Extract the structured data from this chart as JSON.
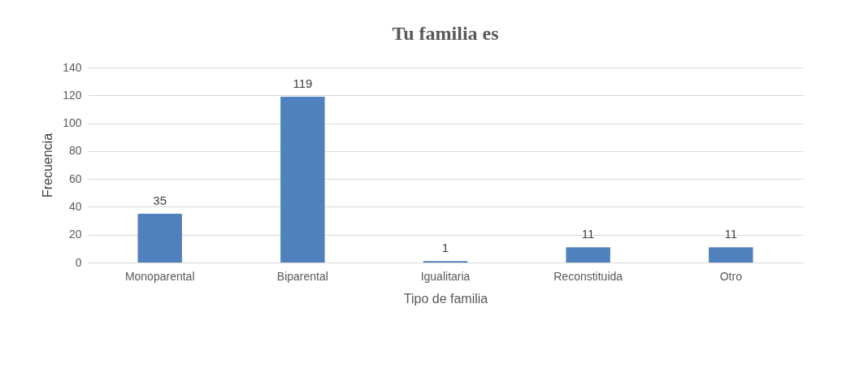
{
  "chart_data": {
    "type": "bar",
    "title": "Tu familia es",
    "xlabel": "Tipo de familia",
    "ylabel": "Frecuencia",
    "categories": [
      "Monoparental",
      "Biparental",
      "Igualitaria",
      "Reconstituida",
      "Otro"
    ],
    "values": [
      35,
      119,
      1,
      11,
      11
    ],
    "color": "#4f81bd",
    "data_labels": true,
    "ylim": [
      0,
      140
    ],
    "yticks": [
      0,
      20,
      40,
      60,
      80,
      100,
      120,
      140
    ],
    "grid": "y"
  }
}
